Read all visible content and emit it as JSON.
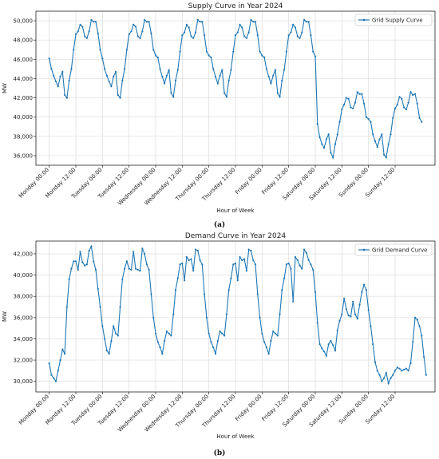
{
  "figure": {
    "captions": [
      "(a)",
      "(b)"
    ]
  },
  "colors": {
    "series": "#1f77b4",
    "grid": "#dcdcdc",
    "axes": "#222222"
  },
  "chart_data": [
    {
      "type": "line",
      "title": "Supply Curve in Year 2024",
      "xlabel": "Hour of Week",
      "ylabel": "MW",
      "legend": {
        "label": "Grid Supply Curve",
        "position": "top-right"
      },
      "grid": true,
      "xlim": [
        -6,
        174
      ],
      "ylim": [
        35000,
        51000
      ],
      "yticks": [
        36000,
        38000,
        40000,
        42000,
        44000,
        46000,
        48000,
        50000
      ],
      "yticklabels": [
        "36,000",
        "38,000",
        "40,000",
        "42,000",
        "44,000",
        "46,000",
        "48,000",
        "50,000"
      ],
      "xticks": [
        0,
        12,
        24,
        36,
        48,
        60,
        72,
        84,
        96,
        108,
        120,
        132,
        144,
        156
      ],
      "xticklabels": [
        "Monday 00:00",
        "Monday 12:00",
        "Tuesday 00:00",
        "Tuesday 12:00",
        "Wednesday 00:00",
        "Wednesday 12:00",
        "Thursday 00:00",
        "Thursday 12:00",
        "Friday 00:00",
        "Friday 12:00",
        "Saturday 00:00",
        "Saturday 12:00",
        "Sunday 00:00",
        "Sunday 12:00"
      ],
      "day_profiles": {
        "weekday": [
          46100,
          45000,
          44300,
          43700,
          43200,
          44200,
          44700,
          42300,
          42000,
          43800,
          45000,
          47000,
          48600,
          48900,
          49600,
          49400,
          48400,
          48200,
          48900,
          50100,
          49900,
          49900,
          48700,
          47000
        ],
        "weekday_end": [
          46400,
          46200,
          45000,
          44200,
          43500,
          44300,
          44900,
          42500,
          42100,
          43800,
          44900,
          46800,
          48500,
          48800,
          49600,
          49300,
          48400,
          48200,
          48800,
          50100,
          49900,
          49900,
          48500,
          46800
        ],
        "saturday": [
          46300,
          39300,
          37900,
          37200,
          36800,
          37700,
          38200,
          36300,
          35800,
          37200,
          38200,
          39500,
          40800,
          41300,
          42000,
          41900,
          41000,
          40900,
          41500,
          42600,
          42400,
          42400,
          41400,
          40000
        ],
        "sunday": [
          39800,
          39500,
          38200,
          37500,
          36900,
          37700,
          38200,
          36100,
          35800,
          37200,
          38200,
          39900,
          40900,
          41300,
          42100,
          41900,
          41000,
          40800,
          41500,
          42600,
          42300,
          42400,
          41400,
          39900
        ],
        "sunday_tail": [
          39500
        ]
      }
    },
    {
      "type": "line",
      "title": "Demand Curve in Year 2024",
      "xlabel": "Hour of Week",
      "ylabel": "MW",
      "legend": {
        "label": "Grid Demand Curve",
        "position": "top-right"
      },
      "grid": true,
      "xlim": [
        -6,
        174
      ],
      "ylim": [
        29000,
        43200
      ],
      "yticks": [
        30000,
        32000,
        34000,
        36000,
        38000,
        40000,
        42000
      ],
      "yticklabels": [
        "30,000",
        "32,000",
        "34,000",
        "36,000",
        "38,000",
        "40,000",
        "42,000"
      ],
      "xticks": [
        0,
        12,
        24,
        36,
        48,
        60,
        72,
        84,
        96,
        108,
        120,
        132,
        144,
        156
      ],
      "xticklabels": [
        "Monday 00:00",
        "Monday 12:00",
        "Tuesday 00:00",
        "Tuesday 12:00",
        "Wednesday 00:00",
        "Wednesday 12:00",
        "Thursday 00:00",
        "Thursday 12:00",
        "Friday 00:00",
        "Friday 12:00",
        "Saturday 00:00",
        "Saturday 12:00",
        "Sunday 00:00",
        "Sunday 12:00"
      ],
      "day_profiles": {
        "monday": [
          31700,
          30600,
          30300,
          30000,
          31000,
          32000,
          33000,
          32600,
          37000,
          39600,
          40600,
          41300,
          41300,
          40500,
          42200,
          41200,
          40900,
          41000,
          42300,
          42700,
          41300,
          40500,
          38700,
          37000
        ],
        "weekday": [
          35200,
          34000,
          32900,
          32600,
          33800,
          35200,
          34500,
          34300,
          37000,
          39600,
          40600,
          41300,
          40600,
          40500,
          42200,
          40600,
          40500,
          40400,
          42500,
          42000,
          41000,
          40500,
          38200,
          36000
        ],
        "weekday_b": [
          34500,
          33700,
          33200,
          32600,
          33800,
          34700,
          34500,
          34300,
          36300,
          38600,
          39700,
          41000,
          41100,
          39500,
          41700,
          41400,
          41500,
          40400,
          42400,
          42300,
          41400,
          41000,
          38200,
          36000
        ],
        "friday": [
          34500,
          33700,
          33200,
          32600,
          33800,
          34700,
          34500,
          34300,
          36300,
          38600,
          39700,
          41000,
          41100,
          40600,
          37500,
          41700,
          41400,
          40900,
          40600,
          42400,
          42100,
          41400,
          41000,
          40500
        ],
        "saturday": [
          38400,
          35500,
          33500,
          33100,
          32800,
          32400,
          33500,
          33800,
          33400,
          32900,
          34800,
          35700,
          36300,
          37800,
          36800,
          36200,
          36100,
          37500,
          36300,
          35900,
          37200,
          38400,
          39100,
          38600
        ],
        "sunday": [
          36700,
          35200,
          33500,
          31800,
          31000,
          30600,
          30000,
          30300,
          30800,
          29800,
          30300,
          30600,
          31000,
          31300,
          31200,
          31000,
          31100,
          31200,
          31000,
          31700,
          33700,
          36000,
          35800,
          35200
        ],
        "sunday_tail": [
          34300,
          32300,
          30600
        ]
      }
    }
  ]
}
